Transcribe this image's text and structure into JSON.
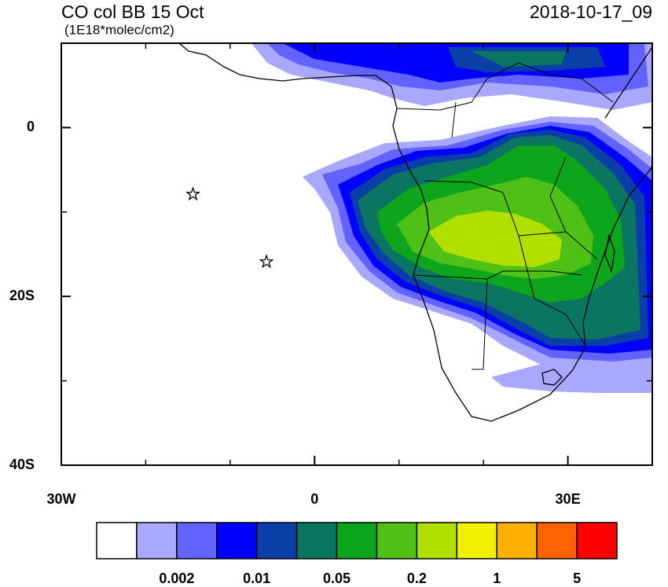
{
  "chart_data": {
    "type": "map",
    "title": "CO col BB 15 Oct",
    "subtitle": "(1E18*molec/cm2)",
    "right_title": "2018-10-17_09",
    "xlim": [
      -30,
      40
    ],
    "ylim": [
      -40,
      10
    ],
    "xticks": [
      {
        "value": -30,
        "label": "30W"
      },
      0,
      {
        "value": 30,
        "label": "30E"
      }
    ],
    "xminor": [
      -20,
      -10,
      10,
      20
    ],
    "yticks": [
      0,
      {
        "value": -20,
        "label": "20S"
      },
      {
        "value": -40,
        "label": "40S"
      }
    ],
    "yminor": [
      -10,
      -30
    ],
    "markers": {
      "x": [
        -14.4,
        -5.7
      ],
      "y": [
        -7.9,
        -15.9
      ]
    },
    "colorbar": {
      "colors": [
        "#ffffff",
        "#a8a8ff",
        "#6262ff",
        "#0000ff",
        "#0a3fa8",
        "#0a7662",
        "#0ca51c",
        "#4fc116",
        "#b0e000",
        "#f2f200",
        "#ffb000",
        "#ff6200",
        "#ff0000"
      ],
      "ticks": [
        0.002,
        0.01,
        0.05,
        0.2,
        1,
        5
      ]
    }
  }
}
